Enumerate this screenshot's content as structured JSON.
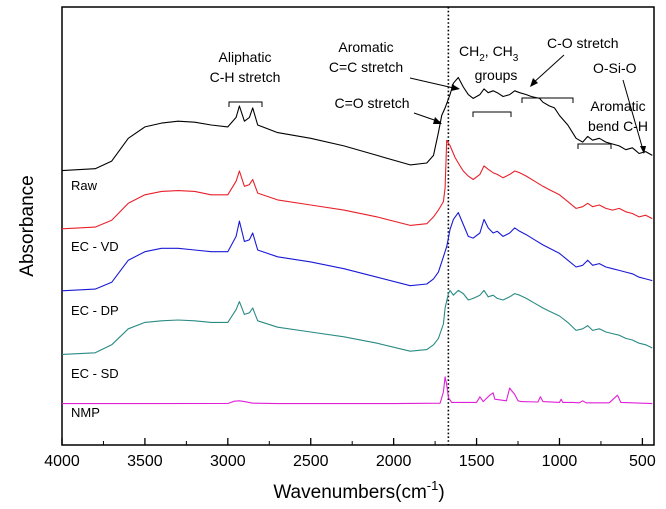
{
  "chart_data": {
    "type": "line",
    "title": "",
    "xlabel": "Wavenumbers(cm⁻¹)",
    "xlabel_base": "Wavenumbers(cm",
    "xlabel_sup": "-1",
    "xlabel_close": ")",
    "ylabel": "Absorbance",
    "xlim": [
      4000,
      430
    ],
    "x_reversed": true,
    "xticks": [
      4000,
      3500,
      3000,
      2500,
      2000,
      1500,
      1000,
      500
    ],
    "xtick_labels": [
      "4000",
      "3500",
      "3000",
      "2500",
      "2000",
      "1500",
      "1000",
      "500"
    ],
    "y_axis_ticks": false,
    "grid": false,
    "reference_line": {
      "x": 1670,
      "style": "dotted"
    },
    "series": [
      {
        "name": "Raw",
        "color": "#000000",
        "points": [
          [
            4000,
            0.6
          ],
          [
            3800,
            0.7
          ],
          [
            3700,
            1.1
          ],
          [
            3600,
            2.3
          ],
          [
            3500,
            2.9
          ],
          [
            3400,
            3.1
          ],
          [
            3300,
            3.2
          ],
          [
            3200,
            3.15
          ],
          [
            3100,
            3.0
          ],
          [
            3000,
            2.9
          ],
          [
            2950,
            3.4
          ],
          [
            2930,
            4.0
          ],
          [
            2900,
            3.2
          ],
          [
            2870,
            3.4
          ],
          [
            2850,
            3.9
          ],
          [
            2820,
            3.0
          ],
          [
            2700,
            2.6
          ],
          [
            2500,
            2.3
          ],
          [
            2300,
            1.9
          ],
          [
            2100,
            1.4
          ],
          [
            1900,
            0.9
          ],
          [
            1800,
            1.0
          ],
          [
            1760,
            1.4
          ],
          [
            1730,
            2.6
          ],
          [
            1710,
            3.5
          ],
          [
            1690,
            3.9
          ],
          [
            1660,
            4.6
          ],
          [
            1640,
            5.2
          ],
          [
            1610,
            5.5
          ],
          [
            1580,
            5.0
          ],
          [
            1550,
            4.6
          ],
          [
            1520,
            4.4
          ],
          [
            1480,
            4.6
          ],
          [
            1455,
            4.9
          ],
          [
            1430,
            4.7
          ],
          [
            1400,
            4.8
          ],
          [
            1375,
            4.7
          ],
          [
            1340,
            4.5
          ],
          [
            1300,
            4.6
          ],
          [
            1270,
            4.8
          ],
          [
            1240,
            4.7
          ],
          [
            1200,
            4.6
          ],
          [
            1170,
            4.5
          ],
          [
            1120,
            4.4
          ],
          [
            1100,
            4.2
          ],
          [
            1060,
            4.0
          ],
          [
            1030,
            3.9
          ],
          [
            1000,
            3.5
          ],
          [
            950,
            3.0
          ],
          [
            900,
            2.3
          ],
          [
            860,
            2.1
          ],
          [
            830,
            2.4
          ],
          [
            800,
            2.2
          ],
          [
            760,
            2.3
          ],
          [
            720,
            2.1
          ],
          [
            680,
            2.0
          ],
          [
            640,
            1.9
          ],
          [
            600,
            1.7
          ],
          [
            560,
            1.8
          ],
          [
            520,
            1.5
          ],
          [
            480,
            1.6
          ],
          [
            440,
            1.4
          ]
        ]
      },
      {
        "name": "EC - VD",
        "color": "#e8212b",
        "points": [
          [
            4000,
            0.6
          ],
          [
            3800,
            0.7
          ],
          [
            3700,
            1.1
          ],
          [
            3600,
            2.1
          ],
          [
            3500,
            2.6
          ],
          [
            3400,
            2.8
          ],
          [
            3300,
            2.85
          ],
          [
            3200,
            2.8
          ],
          [
            3100,
            2.6
          ],
          [
            3000,
            2.6
          ],
          [
            2950,
            3.4
          ],
          [
            2930,
            4.0
          ],
          [
            2900,
            3.1
          ],
          [
            2870,
            3.2
          ],
          [
            2850,
            3.5
          ],
          [
            2820,
            2.7
          ],
          [
            2700,
            2.3
          ],
          [
            2500,
            2.0
          ],
          [
            2300,
            1.7
          ],
          [
            2100,
            1.3
          ],
          [
            1900,
            0.8
          ],
          [
            1800,
            0.9
          ],
          [
            1760,
            1.3
          ],
          [
            1730,
            1.7
          ],
          [
            1700,
            2.2
          ],
          [
            1690,
            3.0
          ],
          [
            1680,
            5.8
          ],
          [
            1660,
            5.5
          ],
          [
            1630,
            4.8
          ],
          [
            1600,
            4.3
          ],
          [
            1580,
            4.0
          ],
          [
            1550,
            3.7
          ],
          [
            1520,
            3.5
          ],
          [
            1480,
            3.8
          ],
          [
            1455,
            4.3
          ],
          [
            1430,
            4.1
          ],
          [
            1400,
            3.9
          ],
          [
            1375,
            3.8
          ],
          [
            1340,
            3.6
          ],
          [
            1300,
            3.8
          ],
          [
            1270,
            4.0
          ],
          [
            1240,
            3.9
          ],
          [
            1200,
            3.7
          ],
          [
            1150,
            3.4
          ],
          [
            1100,
            3.1
          ],
          [
            1060,
            2.9
          ],
          [
            1000,
            2.6
          ],
          [
            950,
            2.2
          ],
          [
            900,
            1.8
          ],
          [
            860,
            1.9
          ],
          [
            830,
            2.1
          ],
          [
            800,
            1.9
          ],
          [
            760,
            2.0
          ],
          [
            720,
            1.8
          ],
          [
            680,
            1.7
          ],
          [
            640,
            1.8
          ],
          [
            600,
            1.6
          ],
          [
            560,
            1.5
          ],
          [
            520,
            1.3
          ],
          [
            480,
            1.4
          ],
          [
            440,
            1.2
          ]
        ]
      },
      {
        "name": "EC - DP",
        "color": "#1a1ad6",
        "points": [
          [
            4000,
            0.6
          ],
          [
            3800,
            0.7
          ],
          [
            3700,
            1.1
          ],
          [
            3600,
            2.4
          ],
          [
            3500,
            2.9
          ],
          [
            3400,
            3.1
          ],
          [
            3300,
            3.1
          ],
          [
            3200,
            3.0
          ],
          [
            3100,
            2.9
          ],
          [
            3000,
            2.9
          ],
          [
            2950,
            3.8
          ],
          [
            2930,
            4.7
          ],
          [
            2900,
            3.5
          ],
          [
            2870,
            3.6
          ],
          [
            2850,
            4.0
          ],
          [
            2820,
            3.0
          ],
          [
            2700,
            2.6
          ],
          [
            2500,
            2.3
          ],
          [
            2300,
            1.9
          ],
          [
            2100,
            1.4
          ],
          [
            1900,
            0.9
          ],
          [
            1800,
            1.0
          ],
          [
            1760,
            1.3
          ],
          [
            1730,
            1.7
          ],
          [
            1700,
            2.6
          ],
          [
            1680,
            3.2
          ],
          [
            1660,
            4.2
          ],
          [
            1640,
            4.8
          ],
          [
            1610,
            5.2
          ],
          [
            1580,
            4.5
          ],
          [
            1550,
            3.8
          ],
          [
            1520,
            3.7
          ],
          [
            1480,
            4.0
          ],
          [
            1455,
            4.8
          ],
          [
            1430,
            4.3
          ],
          [
            1400,
            4.0
          ],
          [
            1375,
            4.1
          ],
          [
            1340,
            3.8
          ],
          [
            1300,
            4.0
          ],
          [
            1270,
            4.3
          ],
          [
            1240,
            4.1
          ],
          [
            1200,
            3.9
          ],
          [
            1150,
            3.6
          ],
          [
            1100,
            3.3
          ],
          [
            1060,
            3.1
          ],
          [
            1000,
            2.8
          ],
          [
            950,
            2.4
          ],
          [
            900,
            2.0
          ],
          [
            860,
            2.1
          ],
          [
            830,
            2.4
          ],
          [
            800,
            2.1
          ],
          [
            760,
            2.2
          ],
          [
            720,
            2.0
          ],
          [
            680,
            1.9
          ],
          [
            640,
            1.8
          ],
          [
            600,
            1.7
          ],
          [
            560,
            1.6
          ],
          [
            520,
            1.4
          ],
          [
            480,
            1.3
          ],
          [
            440,
            1.2
          ]
        ]
      },
      {
        "name": "EC - SD",
        "color": "#2a8a84",
        "points": [
          [
            4000,
            0.6
          ],
          [
            3800,
            0.7
          ],
          [
            3700,
            1.2
          ],
          [
            3600,
            2.2
          ],
          [
            3500,
            2.6
          ],
          [
            3400,
            2.7
          ],
          [
            3300,
            2.75
          ],
          [
            3200,
            2.7
          ],
          [
            3100,
            2.6
          ],
          [
            3000,
            2.6
          ],
          [
            2950,
            3.4
          ],
          [
            2930,
            3.9
          ],
          [
            2900,
            3.1
          ],
          [
            2870,
            3.2
          ],
          [
            2850,
            3.5
          ],
          [
            2820,
            2.7
          ],
          [
            2700,
            2.3
          ],
          [
            2500,
            2.0
          ],
          [
            2300,
            1.7
          ],
          [
            2100,
            1.3
          ],
          [
            1900,
            0.8
          ],
          [
            1800,
            0.9
          ],
          [
            1760,
            1.2
          ],
          [
            1730,
            1.6
          ],
          [
            1700,
            2.5
          ],
          [
            1690,
            3.5
          ],
          [
            1670,
            4.4
          ],
          [
            1660,
            4.6
          ],
          [
            1640,
            4.3
          ],
          [
            1610,
            4.6
          ],
          [
            1580,
            4.4
          ],
          [
            1550,
            4.0
          ],
          [
            1520,
            4.1
          ],
          [
            1480,
            4.3
          ],
          [
            1455,
            4.6
          ],
          [
            1430,
            4.2
          ],
          [
            1400,
            4.3
          ],
          [
            1375,
            4.1
          ],
          [
            1340,
            4.0
          ],
          [
            1300,
            4.2
          ],
          [
            1270,
            4.4
          ],
          [
            1240,
            4.3
          ],
          [
            1200,
            4.1
          ],
          [
            1150,
            3.8
          ],
          [
            1100,
            3.5
          ],
          [
            1060,
            3.3
          ],
          [
            1000,
            3.0
          ],
          [
            950,
            2.6
          ],
          [
            900,
            2.1
          ],
          [
            860,
            2.2
          ],
          [
            830,
            2.4
          ],
          [
            800,
            2.1
          ],
          [
            760,
            2.2
          ],
          [
            720,
            2.0
          ],
          [
            680,
            1.9
          ],
          [
            640,
            1.8
          ],
          [
            600,
            1.6
          ],
          [
            560,
            1.5
          ],
          [
            520,
            1.3
          ],
          [
            480,
            1.2
          ],
          [
            440,
            1.0
          ]
        ]
      },
      {
        "name": "NMP",
        "color": "#e020d8",
        "points": [
          [
            4000,
            0.05
          ],
          [
            3000,
            0.06
          ],
          [
            2960,
            0.35
          ],
          [
            2930,
            0.4
          ],
          [
            2900,
            0.3
          ],
          [
            2850,
            0.1
          ],
          [
            2700,
            0.05
          ],
          [
            2000,
            0.05
          ],
          [
            1720,
            0.1
          ],
          [
            1700,
            1.5
          ],
          [
            1690,
            3.4
          ],
          [
            1680,
            2.4
          ],
          [
            1670,
            0.8
          ],
          [
            1650,
            0.2
          ],
          [
            1500,
            0.2
          ],
          [
            1480,
            0.9
          ],
          [
            1460,
            0.3
          ],
          [
            1440,
            0.7
          ],
          [
            1420,
            1.1
          ],
          [
            1400,
            1.4
          ],
          [
            1390,
            0.6
          ],
          [
            1320,
            0.4
          ],
          [
            1300,
            2.0
          ],
          [
            1290,
            1.7
          ],
          [
            1270,
            1.2
          ],
          [
            1250,
            0.4
          ],
          [
            1230,
            0.3
          ],
          [
            1130,
            0.25
          ],
          [
            1115,
            0.9
          ],
          [
            1100,
            0.3
          ],
          [
            1000,
            0.2
          ],
          [
            990,
            0.6
          ],
          [
            980,
            0.2
          ],
          [
            920,
            0.2
          ],
          [
            880,
            0.15
          ],
          [
            860,
            0.4
          ],
          [
            840,
            0.15
          ],
          [
            700,
            0.15
          ],
          [
            650,
            1.1
          ],
          [
            630,
            0.2
          ],
          [
            440,
            0.05
          ]
        ]
      }
    ],
    "annotations": {
      "aliphatic": [
        "Aliphatic",
        "C-H stretch"
      ],
      "aromatic_cc": [
        "Aromatic",
        "C=C stretch"
      ],
      "co_carbonyl": "C=O stretch",
      "ch2_ch3_groups": [
        "CH",
        "2",
        ", CH",
        "3",
        "groups"
      ],
      "c_o_stretch": "C-O stretch",
      "o_si_o": "O-Si-O",
      "aromatic_bend": [
        "Aromatic",
        "bend C-H"
      ]
    }
  }
}
